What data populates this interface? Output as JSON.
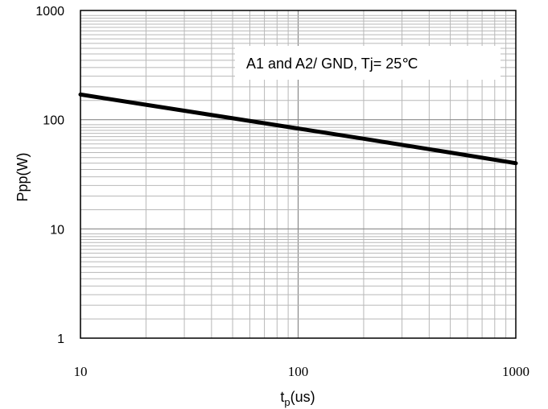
{
  "chart_data": {
    "type": "line",
    "title": "",
    "xlabel": "tp(us)",
    "xlabel_main": "t",
    "xlabel_sub": "p",
    "xlabel_rest": "(us)",
    "ylabel": "Ppp(W)",
    "x_scale": "log",
    "y_scale": "log",
    "xlim": [
      10,
      1000
    ],
    "ylim": [
      1,
      1000
    ],
    "x_ticks": [
      10,
      100,
      1000
    ],
    "y_ticks": [
      1,
      10,
      100,
      1000
    ],
    "x_tick_labels": [
      "10",
      "100",
      "1000"
    ],
    "y_tick_labels": [
      "1",
      "10",
      "100",
      "1000"
    ],
    "grid": true,
    "annotation": "A1 and A2/ GND, Tj= 25℃",
    "series": [
      {
        "x": [
          10,
          20,
          50,
          100,
          200,
          500,
          1000
        ],
        "y": [
          170,
          137,
          103,
          83,
          67,
          50,
          40
        ],
        "color": "#000000"
      }
    ]
  }
}
